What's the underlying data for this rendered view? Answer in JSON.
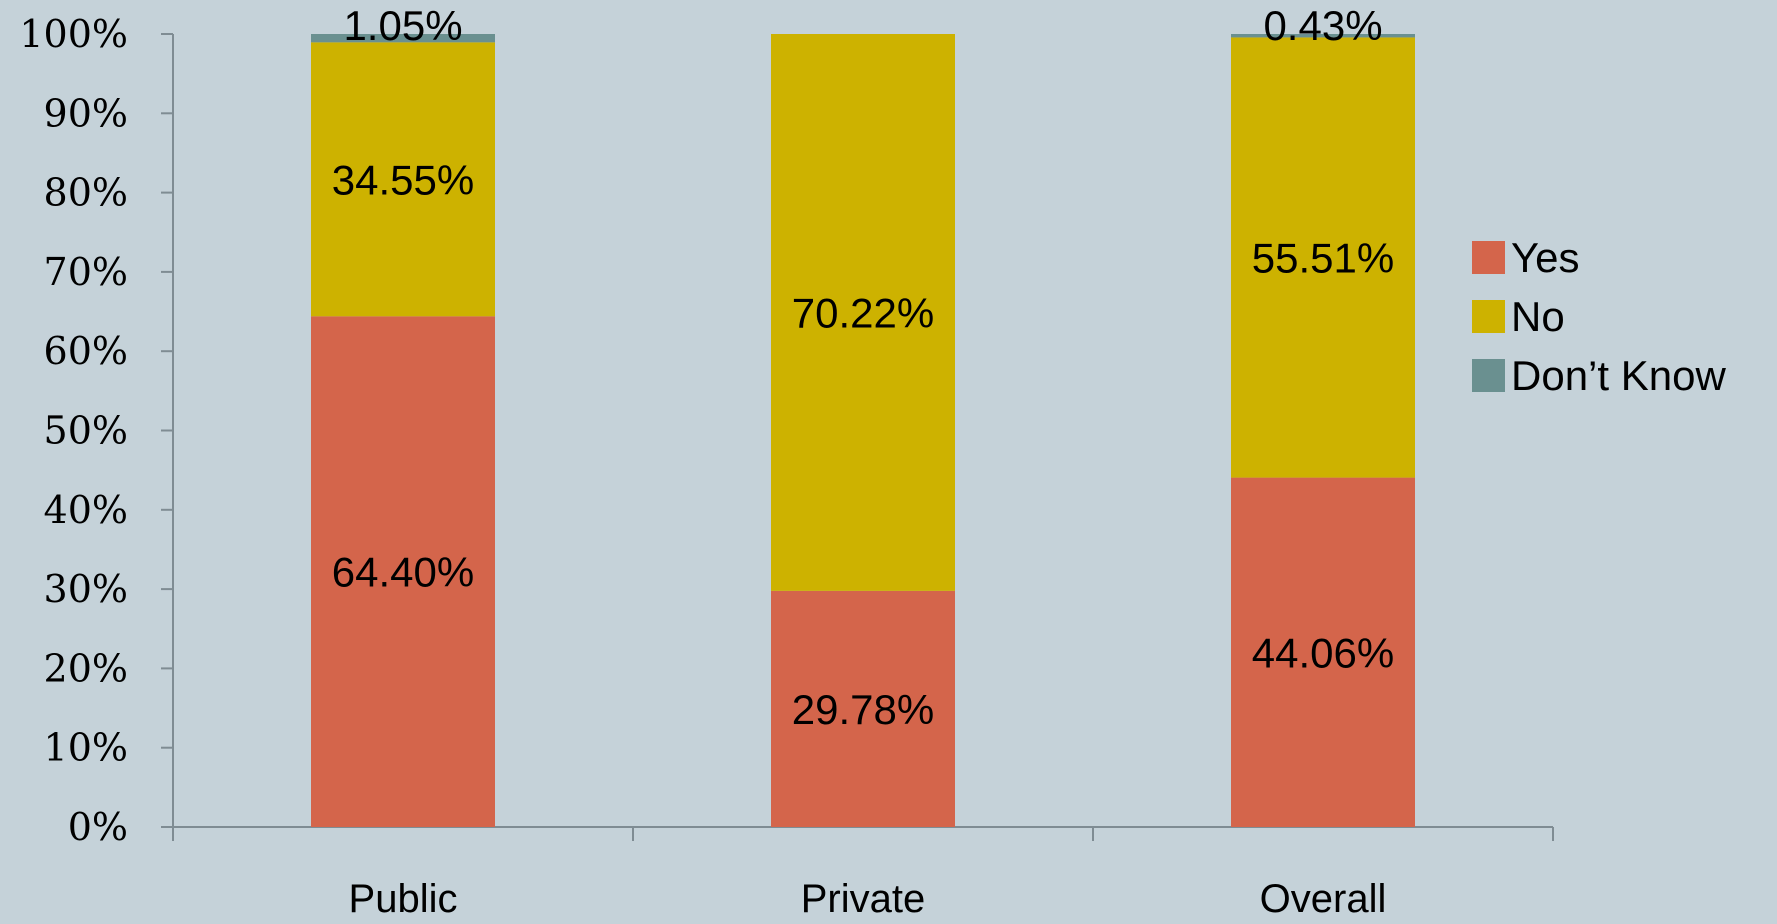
{
  "chart_data": {
    "type": "bar",
    "stacked": true,
    "categories": [
      "Public",
      "Private",
      "Overall"
    ],
    "series": [
      {
        "name": "Yes",
        "values": [
          64.4,
          29.78,
          44.06
        ],
        "color": "#d4654b",
        "labels": [
          "64.40%",
          "29.78%",
          "44.06%"
        ]
      },
      {
        "name": "No",
        "values": [
          34.55,
          70.22,
          55.51
        ],
        "color": "#cdb200",
        "labels": [
          "34.55%",
          "70.22%",
          "55.51%"
        ]
      },
      {
        "name": "Don’t Know",
        "values": [
          1.05,
          0,
          0.43
        ],
        "color": "#6a9090",
        "labels": [
          "1.05%",
          "",
          "0.43%"
        ]
      }
    ],
    "y_ticks": [
      "0%",
      "10%",
      "20%",
      "30%",
      "40%",
      "50%",
      "60%",
      "70%",
      "80%",
      "90%",
      "100%"
    ],
    "ylim": [
      0,
      100
    ],
    "grid": false,
    "legend_position": "right",
    "background": "#c5d2d9",
    "axis_color": "#7f8c93"
  }
}
